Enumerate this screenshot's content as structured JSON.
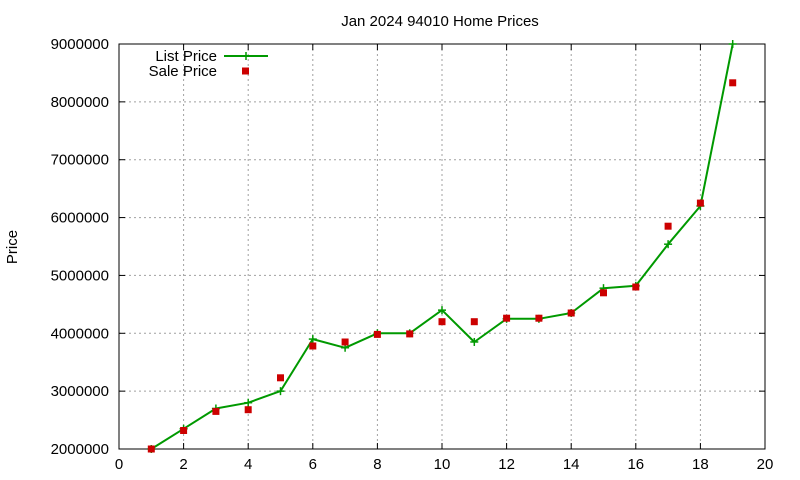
{
  "chart_data": {
    "type": "line",
    "title": "Jan 2024 94010 Home Prices",
    "xlabel": "",
    "ylabel": "Price",
    "xlim": [
      0,
      20
    ],
    "ylim": [
      2000000,
      9000000
    ],
    "x_ticks": [
      "0",
      "2",
      "4",
      "6",
      "8",
      "10",
      "12",
      "14",
      "16",
      "18",
      "20"
    ],
    "y_ticks": [
      "2000000",
      "3000000",
      "4000000",
      "5000000",
      "6000000",
      "7000000",
      "8000000",
      "9000000"
    ],
    "grid": true,
    "legend_position": "top-left",
    "series": [
      {
        "name": "List Price",
        "style": "line-with-plus-markers",
        "color": "#009900",
        "x": [
          1,
          2,
          3,
          4,
          5,
          6,
          7,
          8,
          9,
          10,
          11,
          12,
          13,
          14,
          15,
          16,
          17,
          18,
          19
        ],
        "y": [
          2000000,
          2350000,
          2700000,
          2800000,
          3000000,
          3900000,
          3750000,
          4000000,
          4000000,
          4400000,
          3850000,
          4250000,
          4250000,
          4350000,
          4780000,
          4820000,
          5540000,
          6200000,
          9000000
        ]
      },
      {
        "name": "Sale Price",
        "style": "square-markers",
        "color": "#cc0000",
        "x": [
          1,
          2,
          3,
          4,
          5,
          6,
          7,
          8,
          9,
          10,
          11,
          12,
          13,
          14,
          15,
          16,
          17,
          18,
          19
        ],
        "y": [
          2000000,
          2320000,
          2650000,
          2680000,
          3230000,
          3780000,
          3850000,
          3980000,
          3990000,
          4200000,
          4200000,
          4260000,
          4260000,
          4350000,
          4700000,
          4800000,
          5850000,
          6250000,
          8330000
        ]
      }
    ]
  }
}
